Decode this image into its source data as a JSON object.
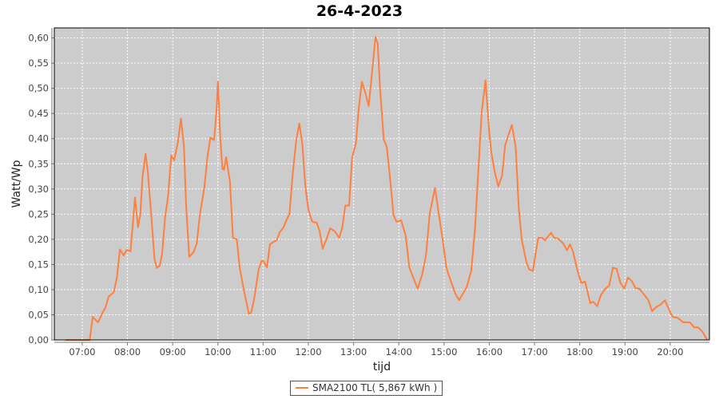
{
  "chart_data": {
    "type": "line",
    "title": "26-4-2023",
    "xlabel": "tijd",
    "ylabel": "Watt/Wp",
    "xlim": [
      "06:23",
      "20:52"
    ],
    "ylim": [
      0,
      0.62
    ],
    "grid": true,
    "legend_position": "bottom",
    "background_color": "#cccccc",
    "x_ticks": [
      "07:00",
      "08:00",
      "09:00",
      "10:00",
      "11:00",
      "12:00",
      "13:00",
      "14:00",
      "15:00",
      "16:00",
      "17:00",
      "18:00",
      "19:00",
      "20:00"
    ],
    "y_ticks": [
      0,
      0.05,
      0.1,
      0.15,
      0.2,
      0.25,
      0.3,
      0.35,
      0.4,
      0.45,
      0.5,
      0.55,
      0.6
    ],
    "y_tick_labels": [
      "0,00",
      "0,05",
      "0,10",
      "0,15",
      "0,20",
      "0,25",
      "0,30",
      "0,35",
      "0,40",
      "0,45",
      "0,50",
      "0,55",
      "0,60"
    ],
    "series": [
      {
        "name": "SMA2100 TL( 5,867 kWh )",
        "color": "#ff7f3f",
        "points": [
          [
            "06:38",
            0
          ],
          [
            "07:06",
            0
          ],
          [
            "07:10",
            0
          ],
          [
            "07:14",
            0.046
          ],
          [
            "07:19",
            0.038
          ],
          [
            "07:21",
            0.035
          ],
          [
            "07:27",
            0.054
          ],
          [
            "07:31",
            0.065
          ],
          [
            "07:35",
            0.086
          ],
          [
            "07:42",
            0.095
          ],
          [
            "07:46",
            0.124
          ],
          [
            "07:50",
            0.18
          ],
          [
            "07:55",
            0.168
          ],
          [
            "07:59",
            0.179
          ],
          [
            "08:04",
            0.176
          ],
          [
            "08:07",
            0.228
          ],
          [
            "08:10",
            0.283
          ],
          [
            "08:14",
            0.224
          ],
          [
            "08:17",
            0.248
          ],
          [
            "08:20",
            0.324
          ],
          [
            "08:24",
            0.37
          ],
          [
            "08:27",
            0.335
          ],
          [
            "08:32",
            0.24
          ],
          [
            "08:36",
            0.16
          ],
          [
            "08:39",
            0.143
          ],
          [
            "08:43",
            0.148
          ],
          [
            "08:46",
            0.171
          ],
          [
            "08:50",
            0.244
          ],
          [
            "08:54",
            0.287
          ],
          [
            "08:58",
            0.367
          ],
          [
            "09:02",
            0.357
          ],
          [
            "09:07",
            0.394
          ],
          [
            "09:11",
            0.44
          ],
          [
            "09:15",
            0.383
          ],
          [
            "09:18",
            0.263
          ],
          [
            "09:22",
            0.165
          ],
          [
            "09:28",
            0.175
          ],
          [
            "09:32",
            0.192
          ],
          [
            "09:36",
            0.248
          ],
          [
            "09:42",
            0.303
          ],
          [
            "09:46",
            0.363
          ],
          [
            "09:50",
            0.402
          ],
          [
            "09:55",
            0.397
          ],
          [
            "09:58",
            0.454
          ],
          [
            "10:00",
            0.513
          ],
          [
            "10:03",
            0.406
          ],
          [
            "10:06",
            0.34
          ],
          [
            "10:08",
            0.338
          ],
          [
            "10:11",
            0.363
          ],
          [
            "10:16",
            0.314
          ],
          [
            "10:20",
            0.203
          ],
          [
            "10:25",
            0.2
          ],
          [
            "10:29",
            0.143
          ],
          [
            "10:35",
            0.095
          ],
          [
            "10:41",
            0.052
          ],
          [
            "10:44",
            0.054
          ],
          [
            "10:48",
            0.081
          ],
          [
            "10:54",
            0.14
          ],
          [
            "10:58",
            0.157
          ],
          [
            "11:01",
            0.156
          ],
          [
            "11:05",
            0.144
          ],
          [
            "11:09",
            0.19
          ],
          [
            "11:14",
            0.195
          ],
          [
            "11:18",
            0.198
          ],
          [
            "11:22",
            0.214
          ],
          [
            "11:27",
            0.224
          ],
          [
            "11:31",
            0.238
          ],
          [
            "11:35",
            0.251
          ],
          [
            "11:39",
            0.327
          ],
          [
            "11:44",
            0.398
          ],
          [
            "11:48",
            0.43
          ],
          [
            "11:52",
            0.39
          ],
          [
            "11:56",
            0.306
          ],
          [
            "12:00",
            0.259
          ],
          [
            "12:05",
            0.235
          ],
          [
            "12:11",
            0.233
          ],
          [
            "12:15",
            0.216
          ],
          [
            "12:19",
            0.181
          ],
          [
            "12:24",
            0.2
          ],
          [
            "12:29",
            0.222
          ],
          [
            "12:35",
            0.216
          ],
          [
            "12:41",
            0.203
          ],
          [
            "12:45",
            0.224
          ],
          [
            "12:49",
            0.267
          ],
          [
            "12:54",
            0.267
          ],
          [
            "12:58",
            0.362
          ],
          [
            "13:03",
            0.39
          ],
          [
            "13:07",
            0.462
          ],
          [
            "13:11",
            0.513
          ],
          [
            "13:15",
            0.494
          ],
          [
            "13:20",
            0.465
          ],
          [
            "13:24",
            0.525
          ],
          [
            "13:29",
            0.602
          ],
          [
            "13:32",
            0.589
          ],
          [
            "13:35",
            0.502
          ],
          [
            "13:40",
            0.398
          ],
          [
            "13:44",
            0.384
          ],
          [
            "13:48",
            0.327
          ],
          [
            "13:53",
            0.248
          ],
          [
            "13:57",
            0.235
          ],
          [
            "14:03",
            0.238
          ],
          [
            "14:09",
            0.208
          ],
          [
            "14:14",
            0.144
          ],
          [
            "14:19",
            0.124
          ],
          [
            "14:25",
            0.102
          ],
          [
            "14:31",
            0.13
          ],
          [
            "14:36",
            0.168
          ],
          [
            "14:41",
            0.251
          ],
          [
            "14:48",
            0.302
          ],
          [
            "14:53",
            0.251
          ],
          [
            "14:58",
            0.2
          ],
          [
            "15:03",
            0.144
          ],
          [
            "15:08",
            0.121
          ],
          [
            "15:15",
            0.092
          ],
          [
            "15:20",
            0.079
          ],
          [
            "15:25",
            0.092
          ],
          [
            "15:30",
            0.105
          ],
          [
            "15:36",
            0.137
          ],
          [
            "15:41",
            0.219
          ],
          [
            "15:46",
            0.351
          ],
          [
            "15:50",
            0.454
          ],
          [
            "15:55",
            0.516
          ],
          [
            "16:00",
            0.41
          ],
          [
            "16:03",
            0.37
          ],
          [
            "16:07",
            0.335
          ],
          [
            "16:12",
            0.305
          ],
          [
            "16:17",
            0.327
          ],
          [
            "16:21",
            0.387
          ],
          [
            "16:26",
            0.41
          ],
          [
            "16:30",
            0.427
          ],
          [
            "16:35",
            0.383
          ],
          [
            "16:39",
            0.263
          ],
          [
            "16:43",
            0.2
          ],
          [
            "16:49",
            0.156
          ],
          [
            "16:53",
            0.14
          ],
          [
            "16:58",
            0.137
          ],
          [
            "17:01",
            0.168
          ],
          [
            "17:05",
            0.203
          ],
          [
            "17:10",
            0.203
          ],
          [
            "17:14",
            0.198
          ],
          [
            "17:18",
            0.206
          ],
          [
            "17:22",
            0.213
          ],
          [
            "17:26",
            0.203
          ],
          [
            "17:31",
            0.202
          ],
          [
            "17:38",
            0.192
          ],
          [
            "17:43",
            0.178
          ],
          [
            "17:47",
            0.19
          ],
          [
            "17:51",
            0.176
          ],
          [
            "17:57",
            0.137
          ],
          [
            "18:02",
            0.113
          ],
          [
            "18:07",
            0.116
          ],
          [
            "18:14",
            0.073
          ],
          [
            "18:18",
            0.076
          ],
          [
            "18:23",
            0.067
          ],
          [
            "18:28",
            0.089
          ],
          [
            "18:34",
            0.102
          ],
          [
            "18:39",
            0.108
          ],
          [
            "18:44",
            0.144
          ],
          [
            "18:49",
            0.141
          ],
          [
            "18:54",
            0.113
          ],
          [
            "18:59",
            0.102
          ],
          [
            "19:04",
            0.124
          ],
          [
            "19:09",
            0.117
          ],
          [
            "19:14",
            0.103
          ],
          [
            "19:19",
            0.102
          ],
          [
            "19:26",
            0.089
          ],
          [
            "19:31",
            0.079
          ],
          [
            "19:36",
            0.057
          ],
          [
            "19:41",
            0.065
          ],
          [
            "19:47",
            0.07
          ],
          [
            "19:53",
            0.079
          ],
          [
            "19:57",
            0.065
          ],
          [
            "20:03",
            0.046
          ],
          [
            "20:10",
            0.044
          ],
          [
            "20:17",
            0.035
          ],
          [
            "20:26",
            0.035
          ],
          [
            "20:32",
            0.025
          ],
          [
            "20:37",
            0.025
          ],
          [
            "20:43",
            0.016
          ],
          [
            "20:49",
            0
          ]
        ]
      }
    ]
  }
}
